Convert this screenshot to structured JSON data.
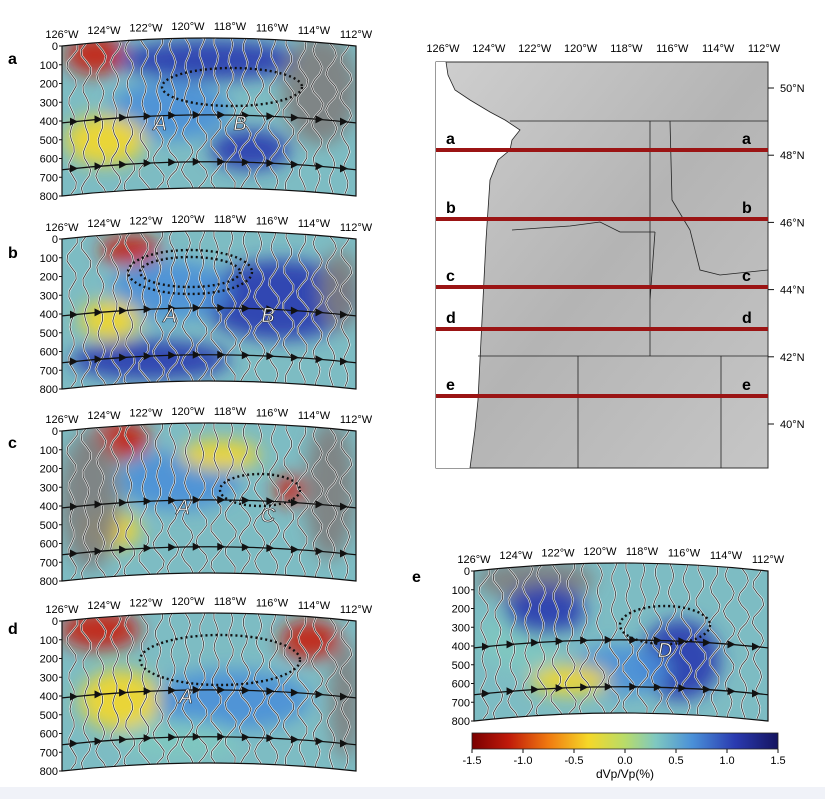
{
  "figure": {
    "lon_ticks": [
      "126°W",
      "124°W",
      "122°W",
      "120°W",
      "118°W",
      "116°W",
      "114°W",
      "112°W"
    ],
    "depth_ticks": [
      "0",
      "100",
      "200",
      "300",
      "400",
      "500",
      "600",
      "700",
      "800"
    ],
    "panels": [
      {
        "label": "a",
        "anomalies": [
          {
            "text": "A"
          },
          {
            "text": "B"
          }
        ]
      },
      {
        "label": "b",
        "anomalies": [
          {
            "text": "A"
          },
          {
            "text": "B"
          }
        ]
      },
      {
        "label": "c",
        "anomalies": [
          {
            "text": "A"
          },
          {
            "text": "C"
          }
        ]
      },
      {
        "label": "d",
        "anomalies": [
          {
            "text": "A"
          }
        ]
      },
      {
        "label": "e",
        "anomalies": [
          {
            "text": "D"
          }
        ]
      }
    ],
    "map": {
      "lon_ticks": [
        "126°W",
        "124°W",
        "122°W",
        "120°W",
        "118°W",
        "116°W",
        "114°W",
        "112°W"
      ],
      "lat_ticks": [
        "50°N",
        "48°N",
        "46°N",
        "44°N",
        "42°N",
        "40°N"
      ],
      "profiles": [
        "a",
        "b",
        "c",
        "d",
        "e"
      ]
    },
    "colorbar": {
      "ticks": [
        "-1.5",
        "-1.0",
        "-0.5",
        "0.0",
        "0.5",
        "1.0",
        "1.5"
      ],
      "label": "dVp/Vp(%)",
      "colors": [
        "#7a0000",
        "#c01a0a",
        "#f07a10",
        "#f5d828",
        "#b8dc6a",
        "#7fc8c0",
        "#4a90d8",
        "#2a3ab0",
        "#141460"
      ]
    }
  }
}
